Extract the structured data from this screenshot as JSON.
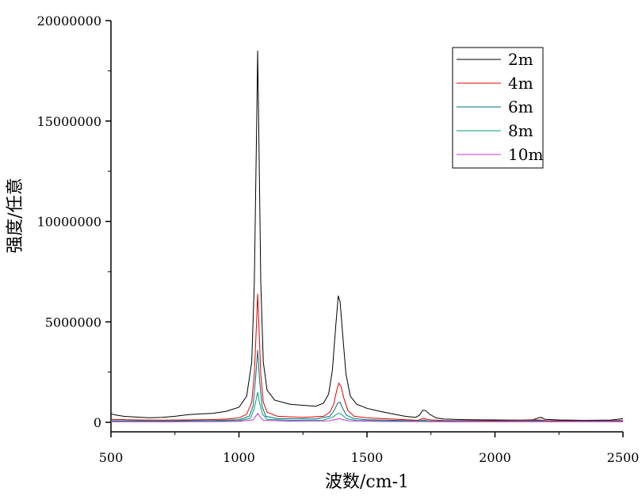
{
  "chart_data": {
    "type": "line",
    "title": "",
    "xlabel": "波数/cm-1",
    "ylabel": "强度/任意",
    "xlim": [
      500,
      2500
    ],
    "ylim": [
      -500000,
      20000000
    ],
    "x_ticks": [
      500,
      1000,
      1500,
      2000,
      2500
    ],
    "x_tick_labels": [
      "500",
      "1000",
      "1500",
      "2000",
      "2500"
    ],
    "y_ticks": [
      0,
      5000000,
      10000000,
      15000000,
      20000000
    ],
    "y_tick_labels": [
      "0",
      "5000000",
      "10000000",
      "15000000",
      "20000000"
    ],
    "grid": false,
    "legend_position": "top-right",
    "series": [
      {
        "name": "2m",
        "color": "#000000",
        "points": [
          [
            500,
            420000
          ],
          [
            520,
            360000
          ],
          [
            550,
            300000
          ],
          [
            600,
            260000
          ],
          [
            650,
            230000
          ],
          [
            700,
            250000
          ],
          [
            750,
            300000
          ],
          [
            800,
            380000
          ],
          [
            850,
            420000
          ],
          [
            900,
            450000
          ],
          [
            950,
            550000
          ],
          [
            1000,
            750000
          ],
          [
            1030,
            1300000
          ],
          [
            1050,
            3000000
          ],
          [
            1060,
            7000000
          ],
          [
            1068,
            14000000
          ],
          [
            1073,
            18500000
          ],
          [
            1078,
            14000000
          ],
          [
            1085,
            7000000
          ],
          [
            1095,
            3000000
          ],
          [
            1110,
            1600000
          ],
          [
            1140,
            1100000
          ],
          [
            1200,
            900000
          ],
          [
            1250,
            850000
          ],
          [
            1300,
            800000
          ],
          [
            1330,
            950000
          ],
          [
            1350,
            1400000
          ],
          [
            1365,
            2600000
          ],
          [
            1378,
            4800000
          ],
          [
            1388,
            6300000
          ],
          [
            1395,
            6000000
          ],
          [
            1405,
            4400000
          ],
          [
            1418,
            2400000
          ],
          [
            1435,
            1300000
          ],
          [
            1460,
            900000
          ],
          [
            1500,
            700000
          ],
          [
            1550,
            550000
          ],
          [
            1600,
            420000
          ],
          [
            1650,
            300000
          ],
          [
            1690,
            250000
          ],
          [
            1705,
            350000
          ],
          [
            1718,
            600000
          ],
          [
            1730,
            580000
          ],
          [
            1745,
            400000
          ],
          [
            1770,
            220000
          ],
          [
            1800,
            160000
          ],
          [
            1900,
            130000
          ],
          [
            2000,
            120000
          ],
          [
            2100,
            110000
          ],
          [
            2150,
            130000
          ],
          [
            2170,
            220000
          ],
          [
            2180,
            250000
          ],
          [
            2195,
            150000
          ],
          [
            2250,
            120000
          ],
          [
            2350,
            100000
          ],
          [
            2450,
            110000
          ],
          [
            2500,
            180000
          ]
        ]
      },
      {
        "name": "4m",
        "color": "#e00000",
        "points": [
          [
            500,
            150000
          ],
          [
            600,
            120000
          ],
          [
            700,
            110000
          ],
          [
            800,
            120000
          ],
          [
            900,
            140000
          ],
          [
            950,
            160000
          ],
          [
            1000,
            220000
          ],
          [
            1030,
            400000
          ],
          [
            1050,
            1000000
          ],
          [
            1060,
            2400000
          ],
          [
            1068,
            4800000
          ],
          [
            1073,
            6400000
          ],
          [
            1078,
            4800000
          ],
          [
            1085,
            2400000
          ],
          [
            1095,
            1000000
          ],
          [
            1110,
            500000
          ],
          [
            1150,
            300000
          ],
          [
            1250,
            250000
          ],
          [
            1330,
            300000
          ],
          [
            1355,
            500000
          ],
          [
            1370,
            900000
          ],
          [
            1382,
            1600000
          ],
          [
            1390,
            1950000
          ],
          [
            1398,
            1800000
          ],
          [
            1410,
            1200000
          ],
          [
            1425,
            600000
          ],
          [
            1450,
            300000
          ],
          [
            1500,
            220000
          ],
          [
            1600,
            160000
          ],
          [
            1700,
            100000
          ],
          [
            1720,
            200000
          ],
          [
            1740,
            130000
          ],
          [
            1800,
            90000
          ],
          [
            2000,
            80000
          ],
          [
            2175,
            120000
          ],
          [
            2200,
            80000
          ],
          [
            2400,
            80000
          ],
          [
            2500,
            90000
          ]
        ]
      },
      {
        "name": "6m",
        "color": "#006e7a",
        "points": [
          [
            500,
            80000
          ],
          [
            700,
            70000
          ],
          [
            900,
            90000
          ],
          [
            1000,
            130000
          ],
          [
            1040,
            300000
          ],
          [
            1055,
            800000
          ],
          [
            1065,
            2200000
          ],
          [
            1073,
            3600000
          ],
          [
            1080,
            2200000
          ],
          [
            1090,
            800000
          ],
          [
            1105,
            300000
          ],
          [
            1150,
            180000
          ],
          [
            1300,
            170000
          ],
          [
            1355,
            300000
          ],
          [
            1372,
            600000
          ],
          [
            1385,
            950000
          ],
          [
            1395,
            1000000
          ],
          [
            1405,
            700000
          ],
          [
            1420,
            350000
          ],
          [
            1450,
            180000
          ],
          [
            1500,
            130000
          ],
          [
            1700,
            70000
          ],
          [
            1722,
            120000
          ],
          [
            1740,
            70000
          ],
          [
            2000,
            50000
          ],
          [
            2175,
            80000
          ],
          [
            2200,
            50000
          ],
          [
            2500,
            60000
          ]
        ]
      },
      {
        "name": "8m",
        "color": "#009e73",
        "points": [
          [
            500,
            50000
          ],
          [
            700,
            45000
          ],
          [
            900,
            60000
          ],
          [
            1000,
            80000
          ],
          [
            1045,
            200000
          ],
          [
            1060,
            700000
          ],
          [
            1068,
            1200000
          ],
          [
            1073,
            1500000
          ],
          [
            1080,
            1000000
          ],
          [
            1092,
            400000
          ],
          [
            1110,
            150000
          ],
          [
            1200,
            100000
          ],
          [
            1330,
            110000
          ],
          [
            1365,
            250000
          ],
          [
            1383,
            420000
          ],
          [
            1392,
            450000
          ],
          [
            1402,
            380000
          ],
          [
            1420,
            180000
          ],
          [
            1460,
            90000
          ],
          [
            1600,
            60000
          ],
          [
            1722,
            80000
          ],
          [
            1800,
            40000
          ],
          [
            2200,
            40000
          ],
          [
            2500,
            40000
          ]
        ]
      },
      {
        "name": "10m",
        "color": "#cc33dd",
        "points": [
          [
            500,
            30000
          ],
          [
            700,
            25000
          ],
          [
            900,
            35000
          ],
          [
            1000,
            50000
          ],
          [
            1055,
            120000
          ],
          [
            1068,
            350000
          ],
          [
            1073,
            450000
          ],
          [
            1080,
            320000
          ],
          [
            1095,
            100000
          ],
          [
            1200,
            60000
          ],
          [
            1350,
            70000
          ],
          [
            1385,
            160000
          ],
          [
            1392,
            180000
          ],
          [
            1405,
            140000
          ],
          [
            1430,
            70000
          ],
          [
            1600,
            40000
          ],
          [
            1800,
            30000
          ],
          [
            2200,
            30000
          ],
          [
            2500,
            30000
          ]
        ]
      }
    ]
  }
}
